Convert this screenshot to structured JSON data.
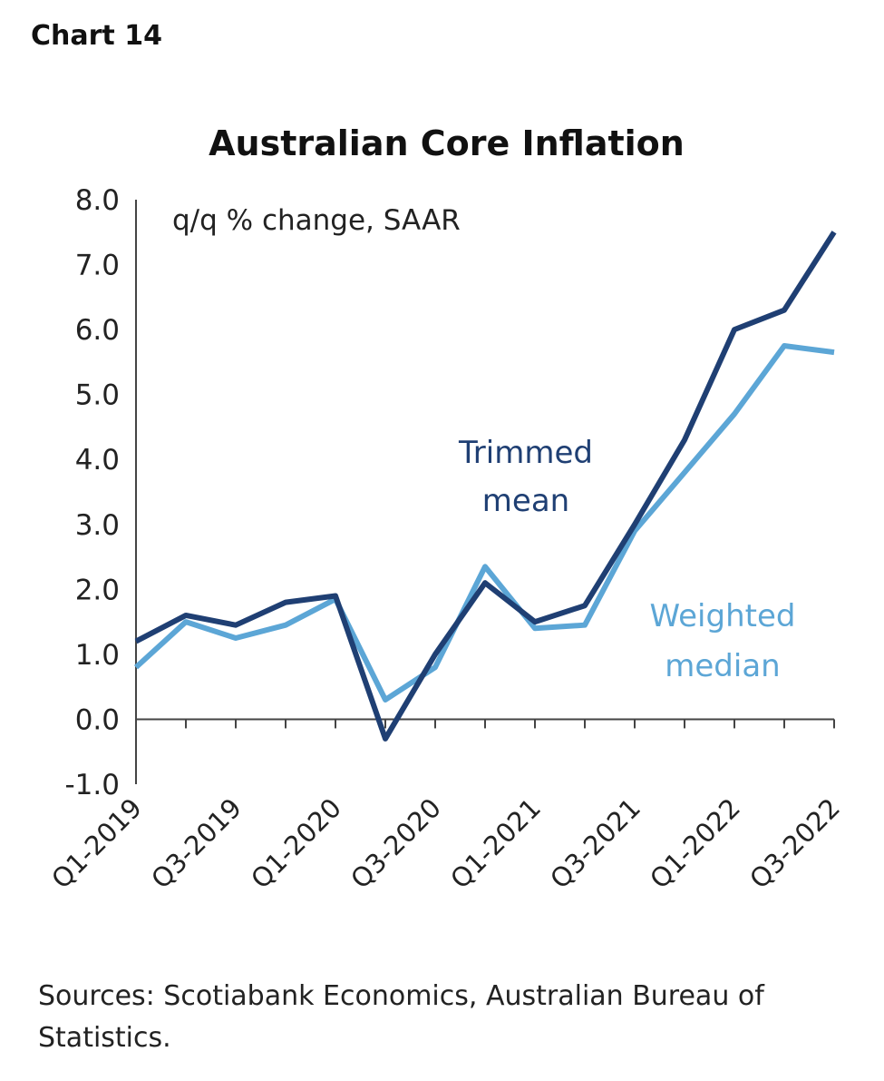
{
  "chart_label": "Chart 14",
  "source": "Sources: Scotiabank Economics, Australian Bureau of Statistics.",
  "chart_data": {
    "type": "line",
    "title": "Australian Core Inflation",
    "annotation": "q/q % change, SAAR",
    "x": [
      "Q1-2019",
      "Q2-2019",
      "Q3-2019",
      "Q4-2019",
      "Q1-2020",
      "Q2-2020",
      "Q3-2020",
      "Q4-2020",
      "Q1-2021",
      "Q2-2021",
      "Q3-2021",
      "Q4-2021",
      "Q1-2022",
      "Q2-2022",
      "Q3-2022"
    ],
    "x_tick_labels": [
      "Q1-2019",
      "Q3-2019",
      "Q1-2020",
      "Q3-2020",
      "Q1-2021",
      "Q3-2021",
      "Q1-2022",
      "Q3-2022"
    ],
    "ylim": [
      -1.0,
      8.0
    ],
    "y_ticks": [
      "8.0",
      "7.0",
      "6.0",
      "5.0",
      "4.0",
      "3.0",
      "2.0",
      "1.0",
      "0.0",
      "-1.0"
    ],
    "grid": false,
    "series": [
      {
        "name": "Trimmed mean",
        "color": "#1f3f73",
        "values": [
          1.2,
          1.6,
          1.45,
          1.8,
          1.9,
          -0.3,
          1.0,
          2.1,
          1.5,
          1.75,
          3.0,
          4.3,
          6.0,
          6.3,
          7.5
        ]
      },
      {
        "name": "Weighted median",
        "color": "#5ca6d6",
        "values": [
          0.8,
          1.5,
          1.25,
          1.45,
          1.85,
          0.3,
          0.8,
          2.35,
          1.4,
          1.45,
          2.9,
          3.8,
          4.7,
          5.75,
          5.65
        ]
      }
    ]
  }
}
